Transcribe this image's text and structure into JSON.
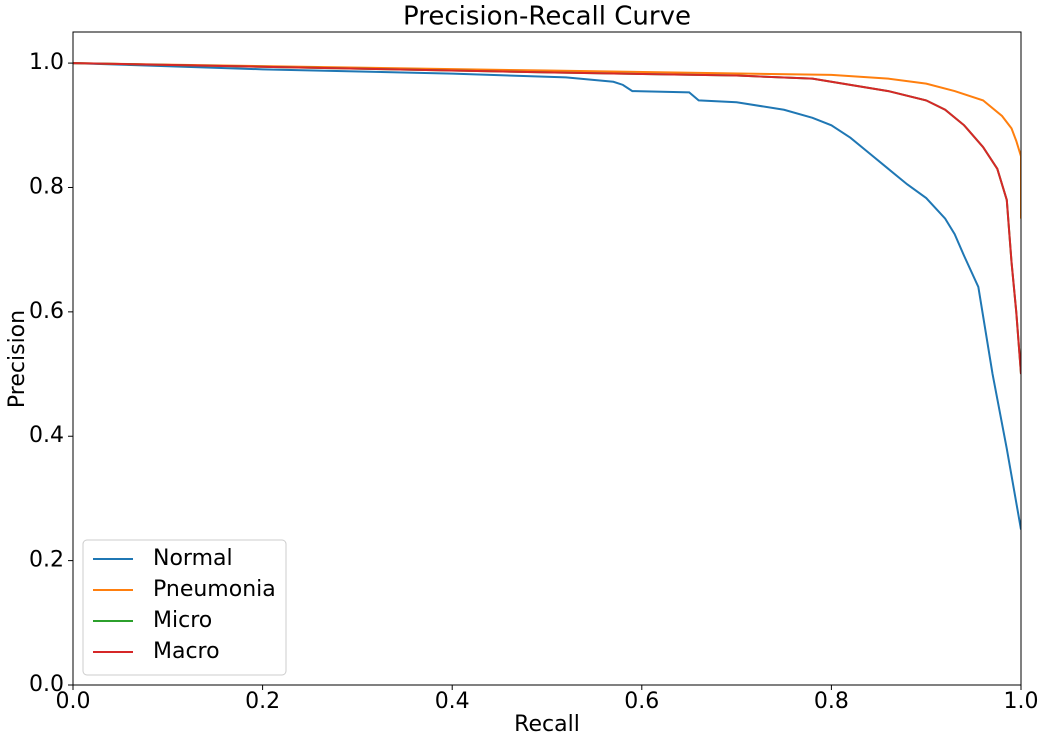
{
  "chart_data": {
    "type": "line",
    "title": "Precision-Recall Curve",
    "x_label": "Recall",
    "y_label": "Precision",
    "xlim": [
      0,
      1
    ],
    "ylim": [
      0,
      1.05
    ],
    "xticks": [
      {
        "value": 0,
        "label": "0.0"
      },
      0.2,
      0.4,
      0.6,
      0.8,
      {
        "value": 1,
        "label": "1.0"
      }
    ],
    "yticks": [
      {
        "value": 0,
        "label": "0.0"
      },
      0.2,
      0.4,
      0.6,
      0.8,
      {
        "value": 1,
        "label": "1.0"
      }
    ],
    "grid": false,
    "legend": "lower left",
    "series": [
      {
        "name": "Normal",
        "color": "#1f77b4",
        "x": [
          0,
          0.2,
          0.4,
          0.52,
          0.57,
          0.58,
          0.59,
          0.65,
          0.66,
          0.7,
          0.75,
          0.78,
          0.8,
          0.82,
          0.84,
          0.86,
          0.88,
          0.9,
          0.92,
          0.93,
          0.94,
          0.955,
          0.97,
          0.985,
          1
        ],
        "values": [
          1,
          0.99,
          0.983,
          0.977,
          0.97,
          0.965,
          0.955,
          0.953,
          0.94,
          0.937,
          0.925,
          0.912,
          0.9,
          0.88,
          0.855,
          0.83,
          0.805,
          0.783,
          0.75,
          0.725,
          0.69,
          0.64,
          0.5,
          0.38,
          0.25
        ]
      },
      {
        "name": "Pneumonia",
        "color": "#ff7f0e",
        "x": [
          0,
          0.5,
          0.8,
          0.86,
          0.9,
          0.93,
          0.96,
          0.98,
          0.99,
          0.995,
          1,
          1
        ],
        "values": [
          1,
          0.988,
          0.981,
          0.975,
          0.967,
          0.955,
          0.94,
          0.915,
          0.895,
          0.875,
          0.85,
          0.75
        ]
      },
      {
        "name": "Micro",
        "color": "#2ca02c",
        "x": [
          0,
          0.5,
          0.7,
          0.78,
          0.82,
          0.86,
          0.9,
          0.92,
          0.94,
          0.96,
          0.975,
          0.985,
          0.99,
          0.995,
          1
        ],
        "values": [
          1,
          0.985,
          0.98,
          0.975,
          0.965,
          0.955,
          0.94,
          0.925,
          0.9,
          0.865,
          0.83,
          0.78,
          0.68,
          0.6,
          0.5
        ]
      },
      {
        "name": "Macro",
        "color": "#d62728",
        "x": [
          0,
          0.5,
          0.7,
          0.78,
          0.82,
          0.86,
          0.9,
          0.92,
          0.94,
          0.96,
          0.975,
          0.985,
          0.99,
          0.995,
          1
        ],
        "values": [
          1,
          0.985,
          0.98,
          0.975,
          0.965,
          0.955,
          0.94,
          0.925,
          0.9,
          0.865,
          0.83,
          0.78,
          0.68,
          0.6,
          0.5
        ]
      }
    ]
  }
}
